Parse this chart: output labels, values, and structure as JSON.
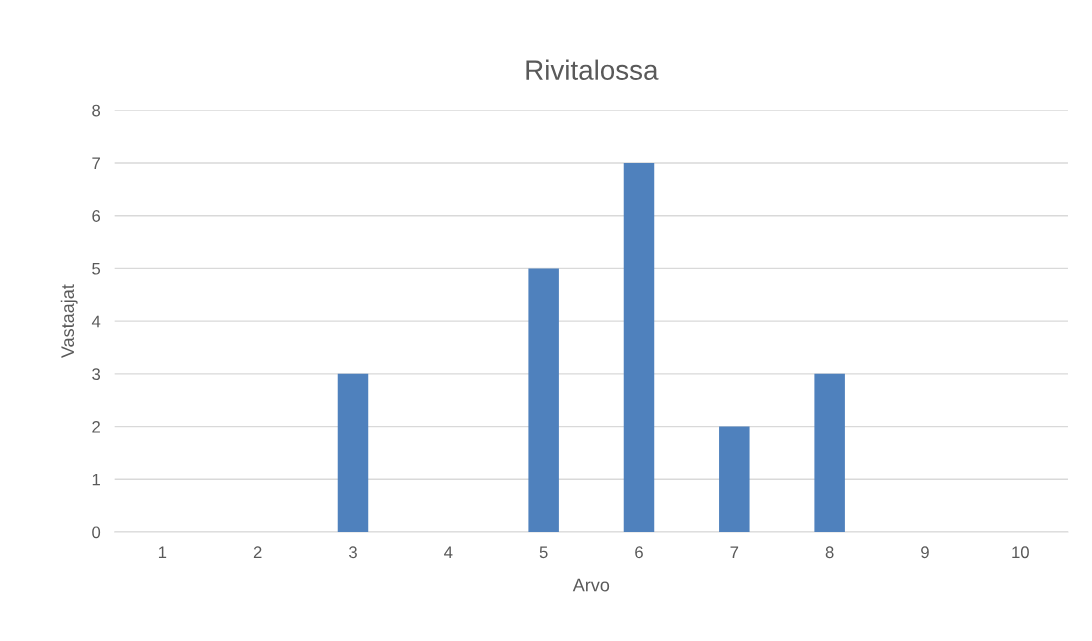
{
  "chart_data": {
    "type": "bar",
    "title": "Rivitalossa",
    "xlabel": "Arvo",
    "ylabel": "Vastaajat",
    "categories": [
      "1",
      "2",
      "3",
      "4",
      "5",
      "6",
      "7",
      "8",
      "9",
      "10"
    ],
    "values": [
      0,
      0,
      3,
      0,
      5,
      7,
      2,
      3,
      0,
      0
    ],
    "color": "#4f81bd",
    "ylim": [
      0,
      8
    ],
    "yticks": [
      0,
      1,
      2,
      3,
      4,
      5,
      6,
      7,
      8
    ],
    "grid": "y",
    "legend": false
  }
}
